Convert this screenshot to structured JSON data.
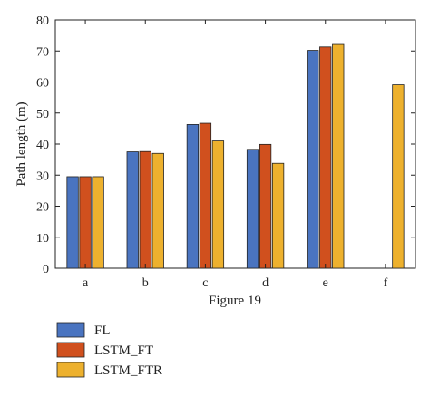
{
  "chart_data": {
    "type": "bar",
    "title": "",
    "xlabel": "Figure 19",
    "ylabel": "Path length (m)",
    "ylim": [
      0,
      80
    ],
    "yticks": [
      0,
      10,
      20,
      30,
      40,
      50,
      60,
      70,
      80
    ],
    "categories": [
      "a",
      "b",
      "c",
      "d",
      "e",
      "f"
    ],
    "series": [
      {
        "name": "FL",
        "color": "#4a74c0",
        "values": [
          29.5,
          37.5,
          46.3,
          38.3,
          70.2,
          null
        ]
      },
      {
        "name": "LSTM_FT",
        "color": "#d0501e",
        "values": [
          29.5,
          37.6,
          46.7,
          39.9,
          71.3,
          null
        ]
      },
      {
        "name": "LSTM_FTR",
        "color": "#edb12e",
        "values": [
          29.5,
          37.0,
          41.0,
          33.8,
          72.1,
          59.1
        ]
      }
    ],
    "grid": false,
    "legend_position": "bottom-left"
  }
}
